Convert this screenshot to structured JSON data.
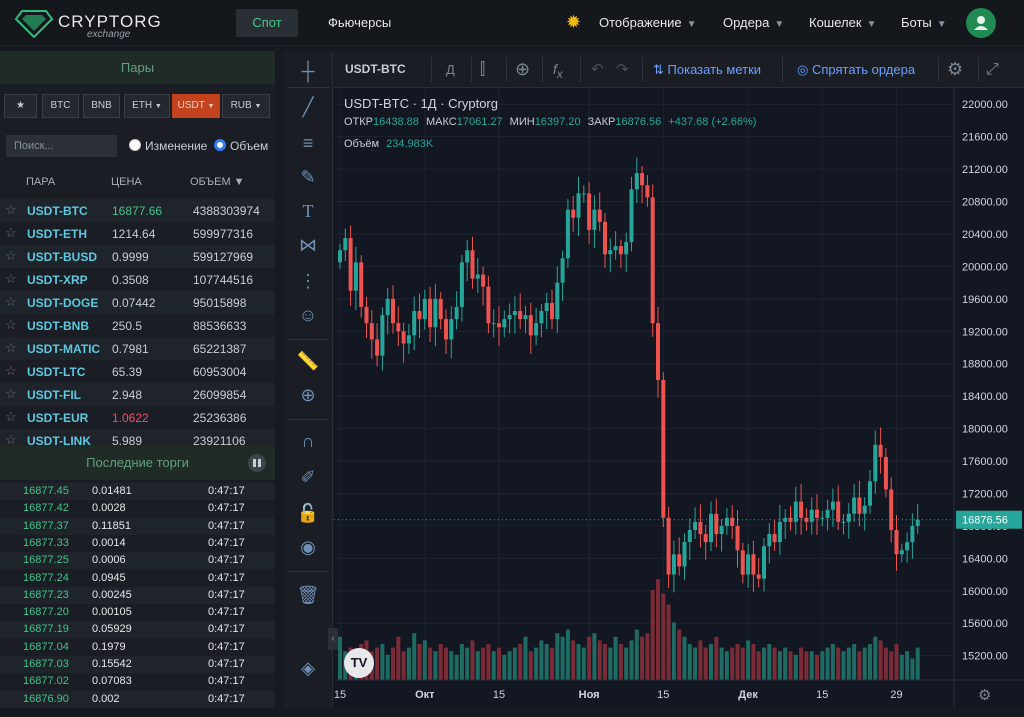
{
  "header": {
    "brand": "CRYPTORG",
    "brand_sub": "exchange",
    "nav_spot": "Спот",
    "nav_futures": "Фьючерсы",
    "menus": [
      "Отображение",
      "Ордера",
      "Кошелек",
      "Боты"
    ]
  },
  "pairs_panel": {
    "title": "Пары",
    "tabs": [
      {
        "label": "★",
        "active": false
      },
      {
        "label": "BTC",
        "active": false
      },
      {
        "label": "BNB",
        "active": false
      },
      {
        "label": "ETH",
        "active": false,
        "dropdown": true
      },
      {
        "label": "USDT",
        "active": true,
        "dropdown": true
      },
      {
        "label": "RUB",
        "active": false,
        "dropdown": true
      }
    ],
    "search_placeholder": "Поиск...",
    "radio_change": "Изменение",
    "radio_volume": "Объем",
    "columns": {
      "pair": "ПАРА",
      "price": "ЦЕНА",
      "volume": "ОБЪЕМ ▼"
    },
    "rows": [
      {
        "pair": "USDT-BTC",
        "price": "16877.66",
        "volume": "4388303974",
        "price_color": "#41c48a"
      },
      {
        "pair": "USDT-ETH",
        "price": "1214.64",
        "volume": "599977316",
        "price_color": "#c9cdd4"
      },
      {
        "pair": "USDT-BUSD",
        "price": "0.9999",
        "volume": "599127969",
        "price_color": "#c9cdd4"
      },
      {
        "pair": "USDT-XRP",
        "price": "0.3508",
        "volume": "107744516",
        "price_color": "#c9cdd4"
      },
      {
        "pair": "USDT-DOGE",
        "price": "0.07442",
        "volume": "95015898",
        "price_color": "#c9cdd4"
      },
      {
        "pair": "USDT-BNB",
        "price": "250.5",
        "volume": "88536633",
        "price_color": "#c9cdd4"
      },
      {
        "pair": "USDT-MATIC",
        "price": "0.7981",
        "volume": "65221387",
        "price_color": "#c9cdd4"
      },
      {
        "pair": "USDT-LTC",
        "price": "65.39",
        "volume": "60953004",
        "price_color": "#c9cdd4"
      },
      {
        "pair": "USDT-FIL",
        "price": "2.948",
        "volume": "26099854",
        "price_color": "#c9cdd4"
      },
      {
        "pair": "USDT-EUR",
        "price": "1.0622",
        "volume": "25236386",
        "price_color": "#f0506e"
      },
      {
        "pair": "USDT-LINK",
        "price": "5.989",
        "volume": "23921106",
        "price_color": "#c9cdd4"
      }
    ]
  },
  "trades_panel": {
    "title": "Последние торги",
    "rows": [
      {
        "price": "16877.45",
        "qty": "0.01481",
        "time": "0:47:17"
      },
      {
        "price": "16877.42",
        "qty": "0.0028",
        "time": "0:47:17"
      },
      {
        "price": "16877.37",
        "qty": "0.11851",
        "time": "0:47:17"
      },
      {
        "price": "16877.33",
        "qty": "0.0014",
        "time": "0:47:17"
      },
      {
        "price": "16877.25",
        "qty": "0.0006",
        "time": "0:47:17"
      },
      {
        "price": "16877.24",
        "qty": "0.0945",
        "time": "0:47:17"
      },
      {
        "price": "16877.23",
        "qty": "0.00245",
        "time": "0:47:17"
      },
      {
        "price": "16877.20",
        "qty": "0.00105",
        "time": "0:47:17"
      },
      {
        "price": "16877.19",
        "qty": "0.05929",
        "time": "0:47:17"
      },
      {
        "price": "16877.04",
        "qty": "0.1979",
        "time": "0:47:17"
      },
      {
        "price": "16877.03",
        "qty": "0.15542",
        "time": "0:47:17"
      },
      {
        "price": "16877.02",
        "qty": "0.07083",
        "time": "0:47:17"
      },
      {
        "price": "16876.90",
        "qty": "0.002",
        "time": "0:47:17"
      }
    ]
  },
  "chart_header": {
    "symbol": "USDT-BTC",
    "interval": "Д",
    "show_marks": "Показать метки",
    "hide_orders": "Спрятать ордера"
  },
  "chart_data": {
    "type": "candlestick",
    "title": "USDT-BTC · 1Д · Cryptorg",
    "ohlc": {
      "open_label": "ОТКР",
      "open": "16438.88",
      "high_label": "МАКС",
      "high": "17061.27",
      "low_label": "МИН",
      "low": "16397.20",
      "close_label": "ЗАКР",
      "close": "16876.56",
      "change": "+437.68 (+2.66%)"
    },
    "volume_label": "Объём",
    "volume_value": "234.983K",
    "last_price": "16876.56",
    "y_ticks": [
      "22000.00",
      "21600.00",
      "21200.00",
      "20800.00",
      "20400.00",
      "20000.00",
      "19600.00",
      "19200.00",
      "18800.00",
      "18400.00",
      "18000.00",
      "17600.00",
      "17200.00",
      "16800.00",
      "16400.00",
      "16000.00",
      "15600.00",
      "15200.00"
    ],
    "ylim": [
      14900,
      22200
    ],
    "x_labels": [
      {
        "label": "15",
        "i": 0
      },
      {
        "label": "Окт",
        "i": 16
      },
      {
        "label": "15",
        "i": 30
      },
      {
        "label": "Ноя",
        "i": 47
      },
      {
        "label": "15",
        "i": 61
      },
      {
        "label": "Дек",
        "i": 77
      },
      {
        "label": "15",
        "i": 91
      },
      {
        "label": "29",
        "i": 105
      }
    ],
    "series": [
      {
        "name": "OHLC",
        "closes": [
          20200,
          20350,
          19700,
          20050,
          19500,
          19300,
          19100,
          18900,
          19400,
          19600,
          19300,
          19200,
          19050,
          19150,
          19450,
          19350,
          19600,
          19250,
          19600,
          19350,
          19100,
          19350,
          19500,
          20050,
          20200,
          19850,
          19900,
          19750,
          19300,
          19300,
          19250,
          19350,
          19400,
          19450,
          19350,
          19400,
          19150,
          19300,
          19450,
          19550,
          19350,
          19800,
          20100,
          20700,
          20600,
          20900,
          20900,
          20450,
          20700,
          20550,
          20150,
          20200,
          20250,
          20150,
          20300,
          20950,
          21150,
          21000,
          20850,
          19300,
          18600,
          16900,
          16200,
          16450,
          16300,
          16600,
          16750,
          16850,
          16700,
          16600,
          16950,
          16700,
          16800,
          16900,
          16800,
          16500,
          16200,
          16450,
          16200,
          16150,
          16550,
          16700,
          16600,
          16850,
          16900,
          16850,
          17100,
          16900,
          16850,
          17000,
          16900,
          16900,
          17000,
          17100,
          16850,
          16850,
          16950,
          17150,
          16950,
          17050,
          17350,
          17800,
          17650,
          17250,
          16750,
          16450,
          16500,
          16600,
          16800,
          16877
        ]
      },
      {
        "name": "Volume",
        "values": [
          12,
          8,
          9,
          7,
          10,
          11,
          8,
          9,
          10,
          7,
          9,
          12,
          8,
          9,
          13,
          10,
          11,
          9,
          8,
          10,
          9,
          8,
          7,
          10,
          9,
          11,
          8,
          9,
          10,
          8,
          9,
          7,
          8,
          9,
          10,
          12,
          8,
          9,
          11,
          10,
          9,
          13,
          12,
          14,
          11,
          10,
          9,
          12,
          13,
          11,
          10,
          9,
          12,
          10,
          9,
          11,
          14,
          12,
          13,
          25,
          28,
          24,
          21,
          16,
          14,
          12,
          10,
          9,
          11,
          9,
          10,
          12,
          9,
          8,
          9,
          10,
          9,
          11,
          10,
          8,
          9,
          10,
          9,
          8,
          9,
          8,
          7,
          9,
          8,
          8,
          7,
          8,
          9,
          10,
          9,
          8,
          9,
          10,
          8,
          9,
          10,
          12,
          11,
          9,
          8,
          10,
          7,
          8,
          6,
          9
        ]
      }
    ]
  }
}
